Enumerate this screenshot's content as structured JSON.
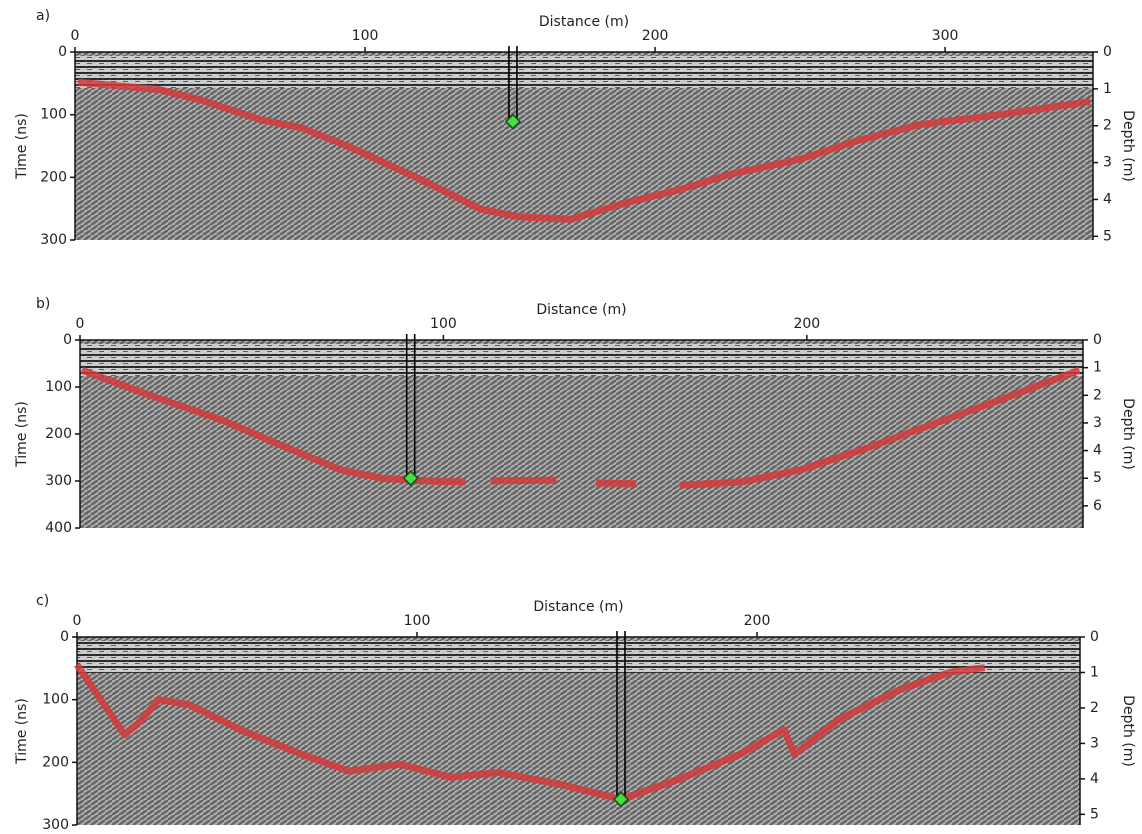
{
  "chart_data": [
    {
      "type": "line",
      "panel_label": "a)",
      "xlabel": "Distance (m)",
      "ylabel": "Time (ns)",
      "y2label": "Depth (m)",
      "xlim": [
        0,
        351
      ],
      "xticks": [
        0,
        100,
        200,
        300
      ],
      "ylim": [
        0,
        300
      ],
      "yticks": [
        0,
        100,
        200,
        300
      ],
      "y2lim": [
        0,
        5.1
      ],
      "y2ticks": [
        0,
        1,
        2,
        3,
        4,
        5
      ],
      "color": "#d43a3a",
      "x": [
        1,
        29,
        43,
        64,
        78,
        95,
        119,
        140,
        153,
        171,
        188,
        209,
        226,
        250,
        271,
        291,
        319,
        350
      ],
      "values": [
        48,
        60,
        76,
        108,
        121,
        152,
        203,
        251,
        263,
        267,
        243,
        219,
        195,
        171,
        140,
        116,
        100,
        79
      ],
      "marker": {
        "x": 151,
        "value": 111,
        "color": "#44dd44"
      }
    },
    {
      "type": "line",
      "panel_label": "b)",
      "xlabel": "Distance (m)",
      "ylabel": "Time (ns)",
      "y2label": "Depth (m)",
      "xlim": [
        0,
        276
      ],
      "xticks": [
        0,
        100,
        200
      ],
      "ylim": [
        0,
        400
      ],
      "yticks": [
        0,
        100,
        200,
        300,
        400
      ],
      "y2lim": [
        0,
        6.8
      ],
      "y2ticks": [
        0,
        1,
        2,
        3,
        4,
        5,
        6
      ],
      "color": "#d43a3a",
      "x": [
        0.5,
        19,
        39,
        55,
        72,
        83,
        91,
        99,
        106,
        109,
        113,
        131,
        136,
        142,
        153,
        159,
        165,
        182,
        198,
        215,
        234,
        253,
        275
      ],
      "values": [
        64,
        117,
        170,
        223,
        277,
        294,
        298,
        301,
        302,
        null,
        300,
        298,
        null,
        304,
        306,
        null,
        309,
        302,
        277,
        234,
        181,
        128,
        64
      ],
      "marker": {
        "x": 91,
        "value": 294,
        "color": "#44dd44"
      }
    },
    {
      "type": "line",
      "panel_label": "c)",
      "xlabel": "Distance (m)",
      "ylabel": "Time (ns)",
      "y2label": "Depth (m)",
      "xlim": [
        0,
        295
      ],
      "xticks": [
        0,
        100,
        200
      ],
      "ylim": [
        0,
        300
      ],
      "yticks": [
        0,
        100,
        200,
        300
      ],
      "y2lim": [
        0,
        5.3
      ],
      "y2ticks": [
        0,
        1,
        2,
        3,
        4,
        5
      ],
      "color": "#d43a3a",
      "x": [
        0,
        7,
        14,
        18.5,
        24,
        33,
        48,
        66,
        80,
        95,
        110,
        124,
        142,
        160,
        177,
        195,
        208,
        211,
        224,
        242,
        257,
        267
      ],
      "values": [
        44,
        100,
        156,
        135,
        100,
        108,
        148,
        187,
        214,
        203,
        224,
        216,
        235,
        259,
        227,
        187,
        148,
        187,
        132,
        84,
        56,
        49
      ],
      "marker": {
        "x": 160,
        "value": 259,
        "color": "#44dd44"
      }
    }
  ]
}
